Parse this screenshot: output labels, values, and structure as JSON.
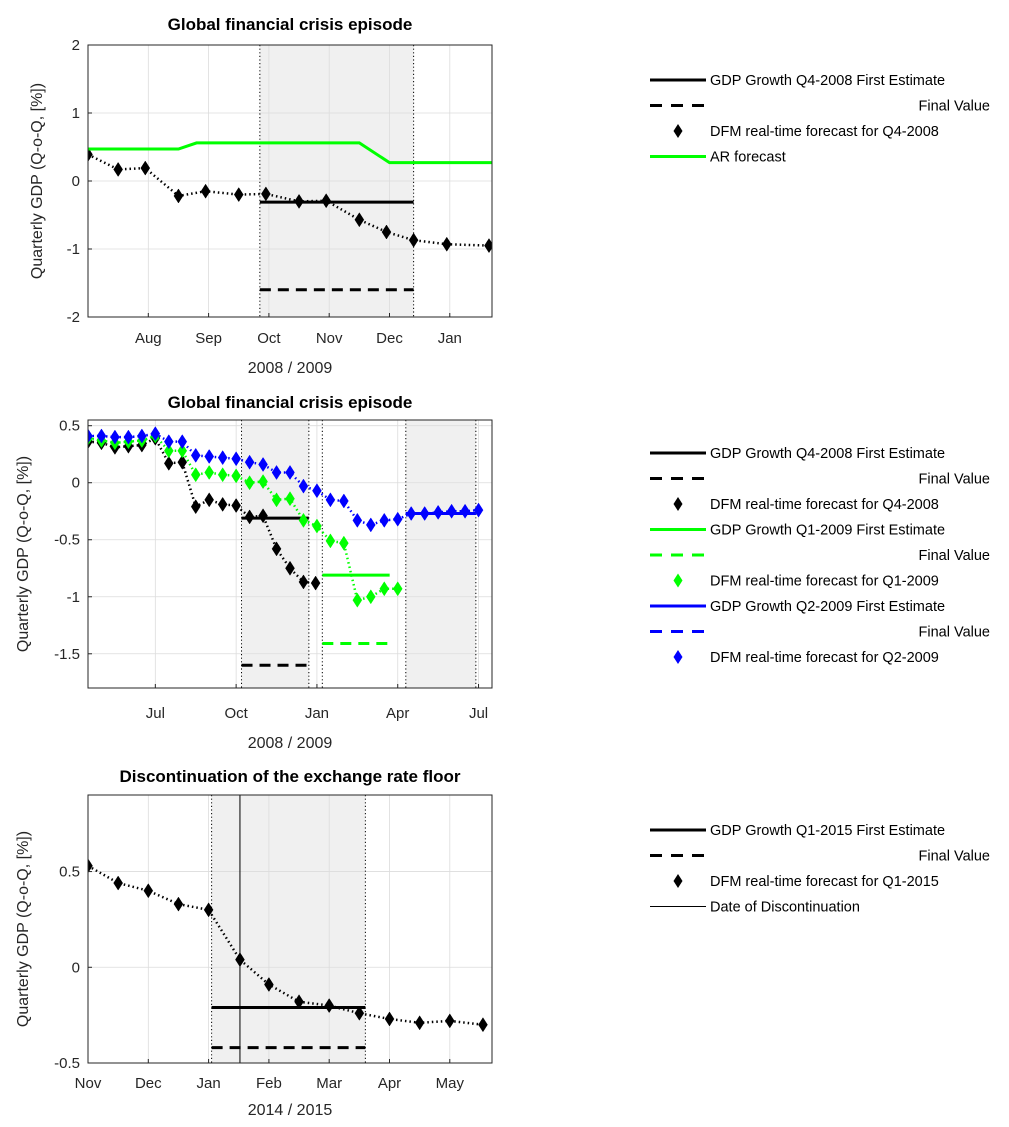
{
  "chart_data": [
    {
      "type": "line",
      "title": "Global financial crisis episode",
      "xlabel": "2008 / 2009",
      "ylabel": "Quarterly GDP (Q-o-Q, [%])",
      "x_ticks": [
        "Aug",
        "Sep",
        "Oct",
        "Nov",
        "Dec",
        "Jan"
      ],
      "x_tick_pos": [
        1,
        2,
        3,
        4,
        5,
        6
      ],
      "xlim": [
        0,
        6.7
      ],
      "ylim": [
        -2,
        2
      ],
      "y_ticks": [
        -2,
        -1,
        0,
        1,
        2
      ],
      "grid": true,
      "legend_position": "right",
      "shaded": [
        [
          2.85,
          5.4
        ]
      ],
      "vlines_dotted": [
        2.85,
        5.4
      ],
      "series": [
        {
          "name": "GDP Growth Q4-2008 First Estimate",
          "style": "solid",
          "color": "#000000",
          "x": [
            2.85,
            5.4
          ],
          "y": [
            -0.31,
            -0.31
          ]
        },
        {
          "name": "Final Value",
          "style": "dashed",
          "color": "#000000",
          "x": [
            2.85,
            5.4
          ],
          "y": [
            -1.6,
            -1.6
          ]
        },
        {
          "name": "DFM real-time forecast for Q4-2008",
          "style": "diamond-dotted",
          "color": "#000000",
          "x": [
            0,
            0.5,
            0.95,
            1.5,
            1.95,
            2.5,
            2.95,
            3.5,
            3.95,
            4.5,
            4.95,
            5.4,
            5.95,
            6.65
          ],
          "y": [
            0.39,
            0.17,
            0.19,
            -0.22,
            -0.15,
            -0.2,
            -0.19,
            -0.3,
            -0.29,
            -0.57,
            -0.75,
            -0.87,
            -0.93,
            -0.95
          ]
        },
        {
          "name": "AR forecast",
          "style": "solid",
          "color": "#00ff00",
          "x": [
            0,
            1.5,
            1.8,
            4.5,
            5.0,
            6.7
          ],
          "y": [
            0.47,
            0.47,
            0.56,
            0.56,
            0.27,
            0.27
          ]
        }
      ],
      "legend": [
        {
          "label": "GDP Growth Q4-2008 First Estimate",
          "style": "solid",
          "color": "#000000"
        },
        {
          "label": "Final Value",
          "style": "dashed",
          "color": "#000000"
        },
        {
          "label": "DFM real-time forecast for Q4-2008",
          "style": "diamond",
          "color": "#000000"
        },
        {
          "label": "AR forecast",
          "style": "solid",
          "color": "#00ff00"
        }
      ]
    },
    {
      "type": "line",
      "title": "Global financial crisis episode",
      "xlabel": "2008 / 2009",
      "ylabel": "Quarterly GDP (Q-o-Q, [%])",
      "x_ticks": [
        "Jul",
        "Oct",
        "Jan",
        "Apr",
        "Jul"
      ],
      "x_tick_pos": [
        2,
        5,
        8,
        11,
        14
      ],
      "xlim": [
        -0.5,
        14.5
      ],
      "ylim": [
        -1.8,
        0.55
      ],
      "y_ticks": [
        -1.5,
        -1,
        -0.5,
        0,
        0.5
      ],
      "grid": true,
      "legend_position": "right",
      "shaded": [
        [
          5.2,
          7.7
        ],
        [
          11.3,
          13.9
        ]
      ],
      "vlines_dotted": [
        5.2,
        7.7,
        8.2,
        11.3,
        13.9
      ],
      "series": [
        {
          "name": "GDP Growth Q4-2008 First Estimate",
          "style": "solid",
          "color": "#000000",
          "x": [
            5.2,
            7.7
          ],
          "y": [
            -0.31,
            -0.31
          ]
        },
        {
          "name": "Final Value",
          "style": "dashed",
          "color": "#000000",
          "x": [
            5.2,
            7.7
          ],
          "y": [
            -1.6,
            -1.6
          ]
        },
        {
          "name": "DFM real-time forecast for Q4-2008",
          "style": "diamond-dotted",
          "color": "#000000",
          "x": [
            -0.5,
            0,
            0.5,
            1.0,
            1.5,
            2.0,
            2.5,
            3.0,
            3.5,
            4.0,
            4.5,
            5.0,
            5.5,
            6.0,
            6.5,
            7.0,
            7.5,
            7.95
          ],
          "y": [
            0.36,
            0.35,
            0.31,
            0.32,
            0.33,
            0.39,
            0.17,
            0.18,
            -0.21,
            -0.15,
            -0.19,
            -0.2,
            -0.3,
            -0.29,
            -0.58,
            -0.75,
            -0.87,
            -0.88
          ]
        },
        {
          "name": "GDP Growth Q1-2009 First Estimate",
          "style": "solid",
          "color": "#00ff00",
          "x": [
            8.2,
            10.7
          ],
          "y": [
            -0.81,
            -0.81
          ]
        },
        {
          "name": "Final Value",
          "style": "dashed",
          "color": "#00ff00",
          "x": [
            8.2,
            10.7
          ],
          "y": [
            -1.41,
            -1.41
          ]
        },
        {
          "name": "DFM real-time forecast for Q1-2009",
          "style": "diamond-dotted",
          "color": "#00ff00",
          "x": [
            -0.5,
            0,
            0.5,
            1.0,
            1.5,
            2.0,
            2.5,
            3.0,
            3.5,
            4.0,
            4.5,
            5.0,
            5.5,
            6.0,
            6.5,
            7.0,
            7.5,
            8.0,
            8.5,
            9.0,
            9.5,
            10.0,
            10.5,
            11.0
          ],
          "y": [
            0.39,
            0.37,
            0.35,
            0.36,
            0.37,
            0.41,
            0.28,
            0.28,
            0.07,
            0.09,
            0.07,
            0.06,
            0.0,
            0.01,
            -0.15,
            -0.14,
            -0.33,
            -0.38,
            -0.51,
            -0.53,
            -1.03,
            -1.0,
            -0.93,
            -0.93
          ]
        },
        {
          "name": "GDP Growth Q2-2009 First Estimate",
          "style": "solid",
          "color": "#0000ff",
          "x": [
            11.3,
            13.9
          ],
          "y": [
            -0.27,
            -0.27
          ]
        },
        {
          "name": "Final Value",
          "style": "dashed",
          "color": "#0000ff",
          "x": [
            11.3,
            13.9
          ],
          "y": [
            -0.27,
            -0.27
          ]
        },
        {
          "name": "DFM real-time forecast for Q2-2009",
          "style": "diamond-dotted",
          "color": "#0000ff",
          "x": [
            -0.5,
            0,
            0.5,
            1.0,
            1.5,
            2.0,
            2.5,
            3.0,
            3.5,
            4.0,
            4.5,
            5.0,
            5.5,
            6.0,
            6.5,
            7.0,
            7.5,
            8.0,
            8.5,
            9.0,
            9.5,
            10.0,
            10.5,
            11.0,
            11.5,
            12.0,
            12.5,
            13.0,
            13.5,
            14.0
          ],
          "y": [
            0.41,
            0.41,
            0.4,
            0.4,
            0.41,
            0.43,
            0.36,
            0.36,
            0.24,
            0.23,
            0.22,
            0.21,
            0.18,
            0.16,
            0.09,
            0.09,
            -0.03,
            -0.07,
            -0.15,
            -0.16,
            -0.33,
            -0.37,
            -0.33,
            -0.32,
            -0.27,
            -0.27,
            -0.26,
            -0.25,
            -0.25,
            -0.24
          ]
        }
      ],
      "legend": [
        {
          "label": "GDP Growth Q4-2008 First Estimate",
          "style": "solid",
          "color": "#000000"
        },
        {
          "label": "Final Value",
          "style": "dashed",
          "color": "#000000"
        },
        {
          "label": "DFM real-time forecast for Q4-2008",
          "style": "diamond",
          "color": "#000000"
        },
        {
          "label": "GDP Growth Q1-2009 First Estimate",
          "style": "solid",
          "color": "#00ff00"
        },
        {
          "label": "Final Value",
          "style": "dashed",
          "color": "#00ff00"
        },
        {
          "label": "DFM real-time forecast for Q1-2009",
          "style": "diamond",
          "color": "#00ff00"
        },
        {
          "label": "GDP Growth Q2-2009 First Estimate",
          "style": "solid",
          "color": "#0000ff"
        },
        {
          "label": "Final Value",
          "style": "dashed",
          "color": "#0000ff"
        },
        {
          "label": "DFM real-time forecast for Q2-2009",
          "style": "diamond",
          "color": "#0000ff"
        }
      ]
    },
    {
      "type": "line",
      "title": "Discontinuation of the exchange rate floor",
      "xlabel": "2014 / 2015",
      "ylabel": "Quarterly GDP (Q-o-Q, [%])",
      "x_ticks": [
        "Nov",
        "Dec",
        "Jan",
        "Feb",
        "Mar",
        "Apr",
        "May"
      ],
      "x_tick_pos": [
        0,
        1,
        2,
        3,
        4,
        5,
        6
      ],
      "xlim": [
        0,
        6.7
      ],
      "ylim": [
        -0.5,
        0.9
      ],
      "y_ticks": [
        -0.5,
        0,
        0.5
      ],
      "grid": true,
      "legend_position": "right",
      "shaded": [
        [
          2.05,
          4.6
        ]
      ],
      "vlines_dotted": [
        2.05,
        4.6
      ],
      "vline_solid": 2.52,
      "series": [
        {
          "name": "GDP Growth Q1-2015 First Estimate",
          "style": "solid",
          "color": "#000000",
          "x": [
            2.05,
            4.6
          ],
          "y": [
            -0.21,
            -0.21
          ]
        },
        {
          "name": "Final Value",
          "style": "dashed",
          "color": "#000000",
          "x": [
            2.05,
            4.6
          ],
          "y": [
            -0.42,
            -0.42
          ]
        },
        {
          "name": "DFM real-time forecast for Q1-2015",
          "style": "diamond-dotted",
          "color": "#000000",
          "x": [
            0,
            0.5,
            1.0,
            1.5,
            2.0,
            2.52,
            3.0,
            3.5,
            4.0,
            4.5,
            5.0,
            5.5,
            6.0,
            6.55
          ],
          "y": [
            0.53,
            0.44,
            0.4,
            0.33,
            0.3,
            0.04,
            -0.09,
            -0.18,
            -0.2,
            -0.24,
            -0.27,
            -0.29,
            -0.28,
            -0.3
          ]
        }
      ],
      "legend": [
        {
          "label": "GDP Growth Q1-2015 First Estimate",
          "style": "solid",
          "color": "#000000"
        },
        {
          "label": "Final Value",
          "style": "dashed",
          "color": "#000000"
        },
        {
          "label": "DFM real-time forecast for Q1-2015",
          "style": "diamond",
          "color": "#000000"
        },
        {
          "label": "Date of Discontinuation",
          "style": "thin",
          "color": "#000000"
        }
      ]
    }
  ]
}
